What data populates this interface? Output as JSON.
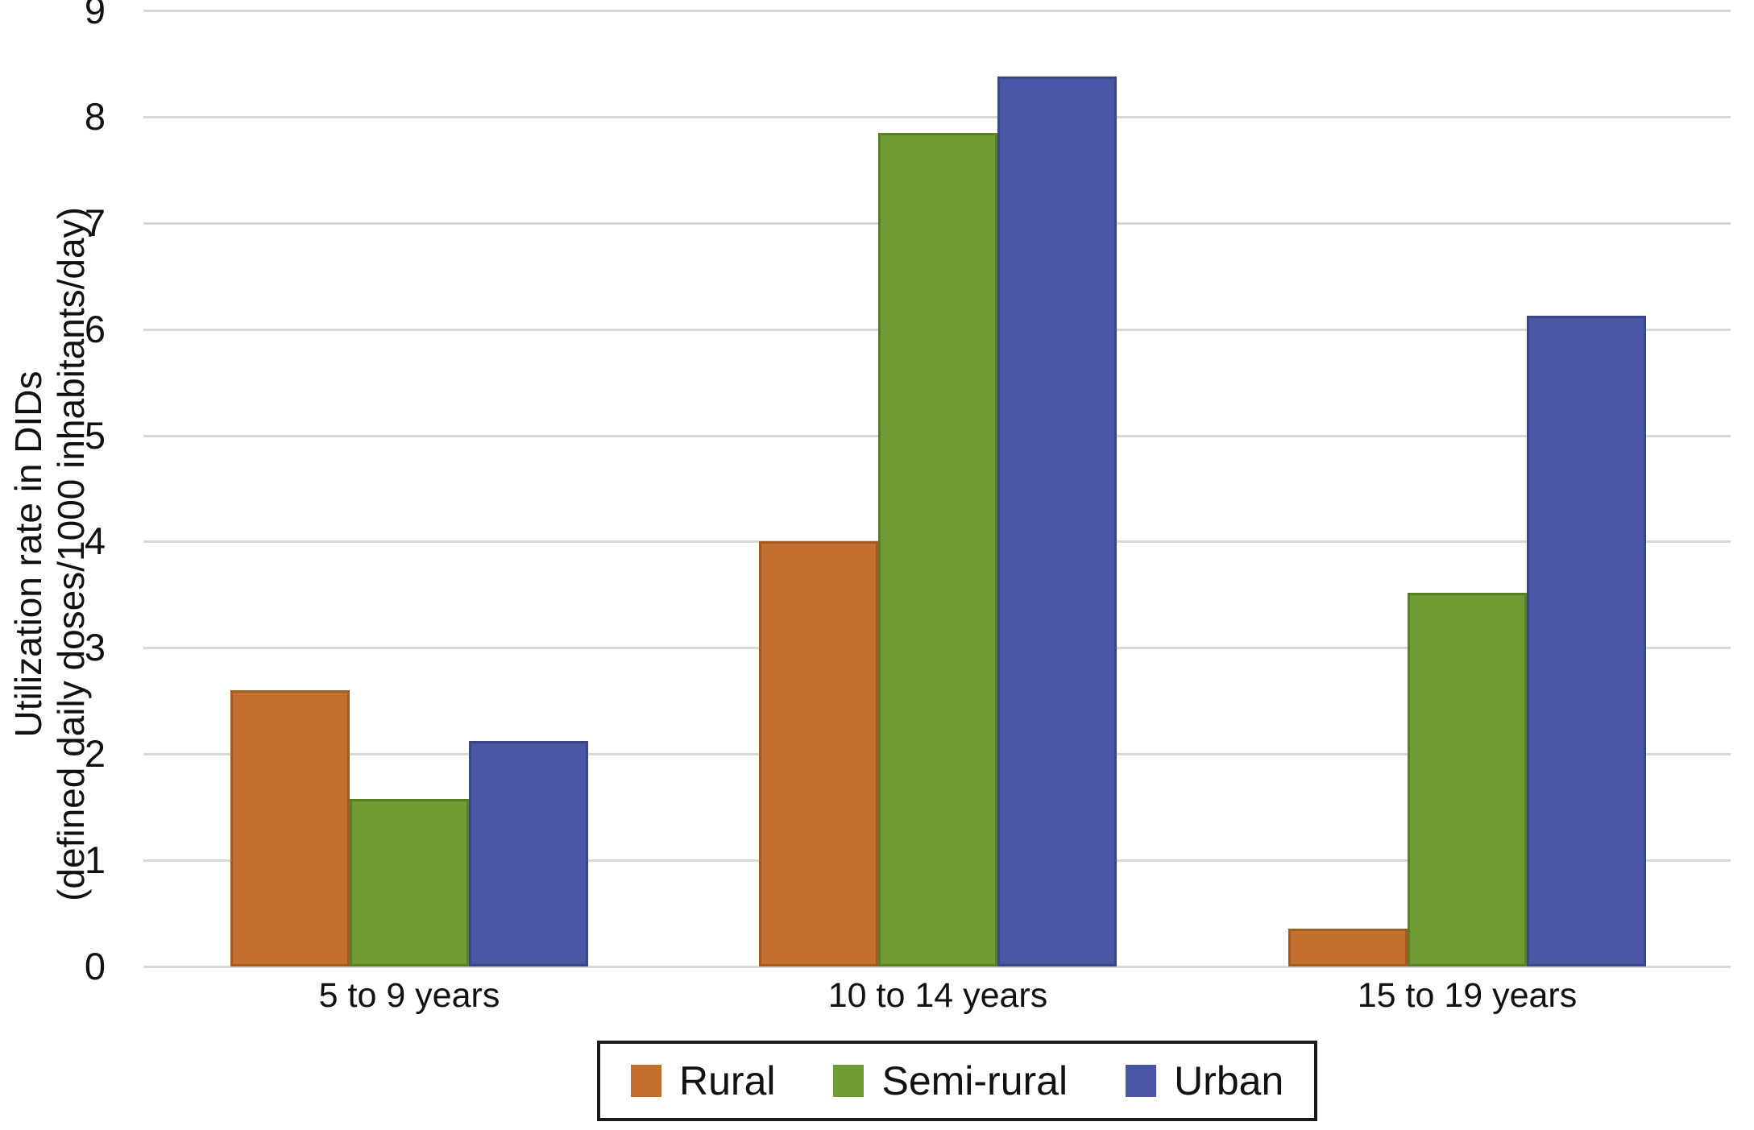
{
  "chart_data": {
    "type": "bar",
    "title": "",
    "ylabel": "Utilization rate in DIDs (defined daily doses/1000 inhabitants/day)",
    "ylabel_line1": "Utilization rate in DIDs",
    "ylabel_line2": "(defined daily doses/1000 inhabitants/day)",
    "xlabel": "",
    "categories": [
      "5 to 9 years",
      "10 to 14 years",
      "15 to 19 years"
    ],
    "series": [
      {
        "name": "Rural",
        "color": "#C36F2D",
        "edge_color": "#A55A1E",
        "values": [
          2.6,
          4.0,
          0.36
        ]
      },
      {
        "name": "Semi-rural",
        "color": "#6F9C35",
        "edge_color": "#587F26",
        "values": [
          1.58,
          7.85,
          3.52
        ]
      },
      {
        "name": "Urban",
        "color": "#4A55A5",
        "edge_color": "#394784",
        "values": [
          2.12,
          8.38,
          6.13
        ]
      }
    ],
    "ylim": [
      0,
      9
    ],
    "yticks": [
      0,
      1,
      2,
      3,
      4,
      5,
      6,
      7,
      8,
      9
    ],
    "grid": true,
    "gridline_color": "#d8d8d8",
    "background_color": "#ffffff",
    "legend_position": "bottom"
  }
}
